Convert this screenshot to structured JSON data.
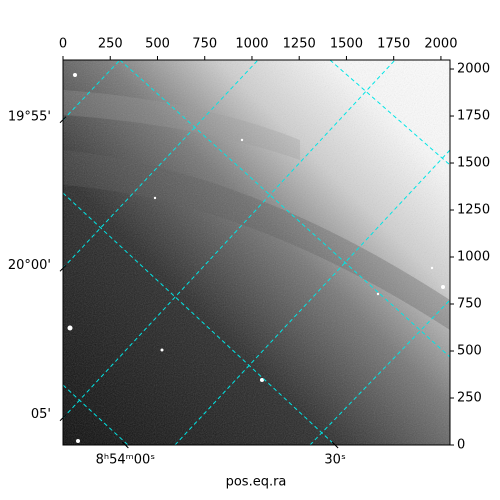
{
  "chart_data": {
    "type": "image",
    "xlabel": "pos.eq.ra",
    "xlim": [
      0,
      2048
    ],
    "ylim": [
      0,
      2048
    ],
    "xticks": [
      0,
      250,
      500,
      750,
      1000,
      1250,
      1500,
      1750,
      2000
    ],
    "yticks": [
      0,
      250,
      500,
      750,
      1000,
      1250,
      1500,
      1750,
      2000
    ],
    "ra_ticks": [
      {
        "value": 330,
        "label": "8ʰ54ᵐ00ˢ"
      },
      {
        "value": 1440,
        "label": "30ˢ"
      }
    ],
    "dec_ticks": [
      {
        "value": 1730,
        "label": "19°55'"
      },
      {
        "value": 940,
        "label": "20°00'"
      },
      {
        "value": 145,
        "label": "05'"
      }
    ],
    "grid_color": "#00e5e5"
  }
}
